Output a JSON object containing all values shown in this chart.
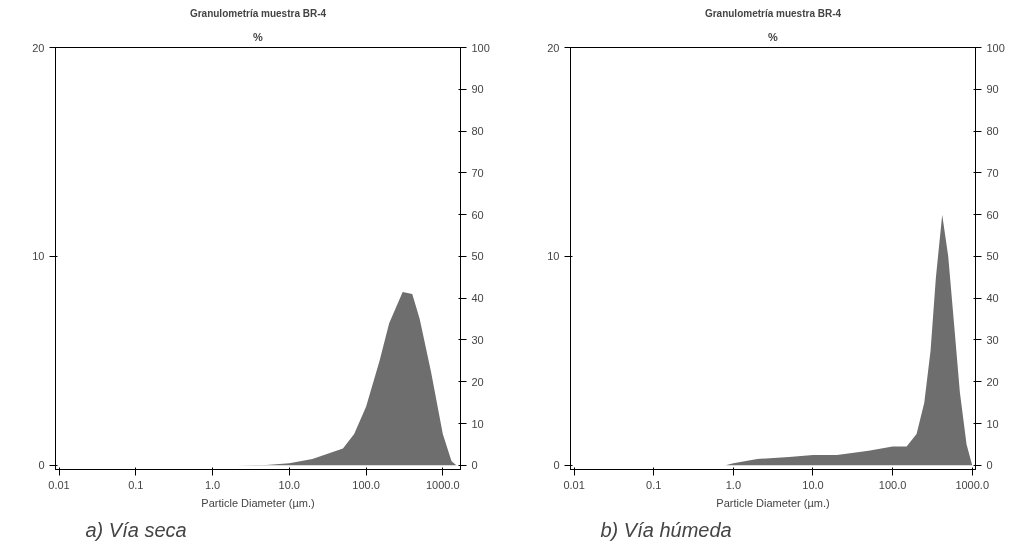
{
  "chart_data": [
    {
      "type": "area",
      "title": "Granulometría muestra BR-4",
      "ylabel": "%",
      "xlabel": "Particle Diameter (µm.)",
      "annotations": [
        "a) Vía seca"
      ],
      "log": "x",
      "grid": false,
      "xlim": [
        0.009,
        1700
      ],
      "xticks": [
        {
          "value": 0.01,
          "label": "0.01"
        },
        {
          "value": 0.1,
          "label": "0.1"
        },
        {
          "value": 1,
          "label": "1.0"
        },
        {
          "value": 10,
          "label": "10.0"
        },
        {
          "value": 100,
          "label": "100.0"
        },
        {
          "value": 1000,
          "label": "1000.0"
        }
      ],
      "ylim": [
        -0.2,
        20
      ],
      "yticks": [
        0,
        10,
        20
      ],
      "y2lim": [
        -1,
        100
      ],
      "y2ticks": [
        0,
        10,
        20,
        30,
        40,
        50,
        60,
        70,
        80,
        90,
        100
      ],
      "x": [
        2,
        5,
        10,
        20,
        50,
        70,
        100,
        150,
        200,
        300,
        400,
        500,
        700,
        1000,
        1300,
        1500
      ],
      "series": [
        {
          "color": "#6e6e6e",
          "values": [
            0,
            0.02,
            0.1,
            0.3,
            0.8,
            1.5,
            2.8,
            5,
            6.8,
            8.3,
            8.2,
            7,
            4.5,
            1.5,
            0.2,
            0
          ]
        }
      ]
    },
    {
      "type": "area",
      "title": "Granulometría muestra BR-4",
      "ylabel": "%",
      "xlabel": "Particle Diameter (µm.)",
      "annotations": [
        "b) Vía húmeda"
      ],
      "log": "x",
      "grid": false,
      "xlim": [
        0.009,
        1100
      ],
      "xticks": [
        {
          "value": 0.01,
          "label": "0.01"
        },
        {
          "value": 0.1,
          "label": "0.1"
        },
        {
          "value": 1,
          "label": "1.0"
        },
        {
          "value": 10,
          "label": "10.0"
        },
        {
          "value": 100,
          "label": "100.0"
        },
        {
          "value": 1000,
          "label": "1000.0"
        }
      ],
      "ylim": [
        -0.2,
        20
      ],
      "yticks": [
        0,
        10,
        20
      ],
      "y2lim": [
        -1,
        100
      ],
      "y2ticks": [
        0,
        10,
        20,
        30,
        40,
        50,
        60,
        70,
        80,
        90,
        100
      ],
      "x": [
        0.8,
        1,
        2,
        5,
        10,
        20,
        50,
        100,
        150,
        200,
        250,
        300,
        350,
        420,
        500,
        600,
        700,
        850,
        1000
      ],
      "series": [
        {
          "color": "#6e6e6e",
          "values": [
            0,
            0.1,
            0.3,
            0.4,
            0.5,
            0.5,
            0.7,
            0.9,
            0.9,
            1.5,
            3,
            5.5,
            9,
            12,
            10,
            6.5,
            3.5,
            1,
            0
          ]
        }
      ]
    }
  ]
}
